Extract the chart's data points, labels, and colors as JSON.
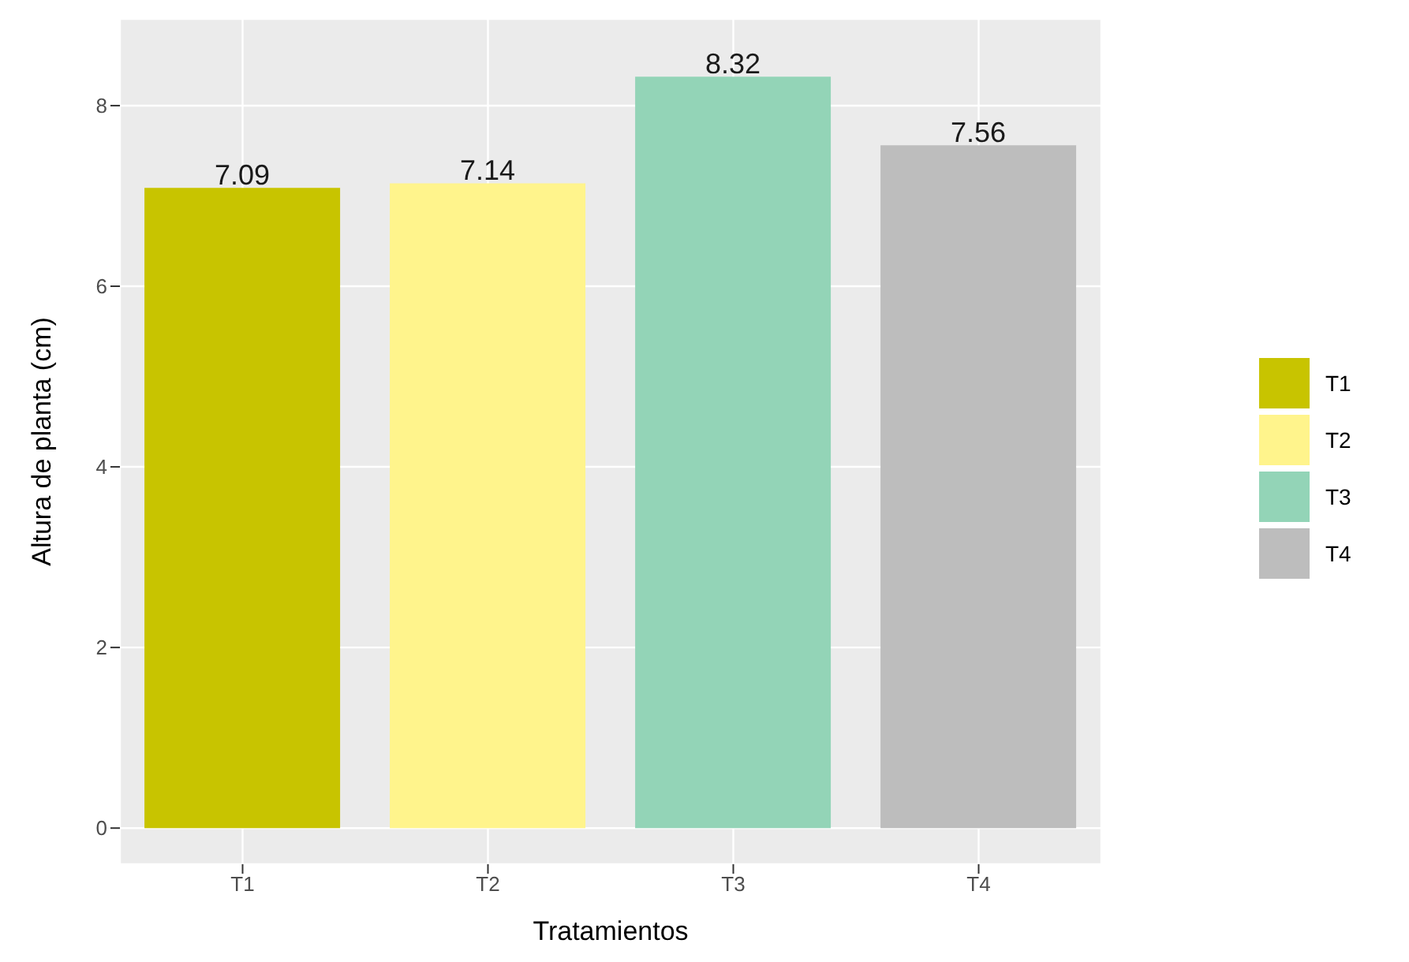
{
  "chart_data": {
    "type": "bar",
    "xlabel": "Tratamientos",
    "ylabel": "Altura de planta (cm)",
    "categories": [
      "T1",
      "T2",
      "T3",
      "T4"
    ],
    "series": [
      {
        "name": "T1",
        "color": "#c8c400",
        "values": [
          7.09,
          null,
          null,
          null
        ]
      },
      {
        "name": "T2",
        "color": "#fff48c",
        "values": [
          null,
          7.14,
          null,
          null
        ]
      },
      {
        "name": "T3",
        "color": "#93d4b7",
        "values": [
          null,
          null,
          8.32,
          null
        ]
      },
      {
        "name": "T4",
        "color": "#bdbdbd",
        "values": [
          null,
          null,
          null,
          7.56
        ]
      }
    ],
    "ylim": [
      -0.4,
      8.96
    ],
    "yticks": [
      0,
      2,
      4,
      6,
      8
    ],
    "grid": true,
    "legend": "right",
    "data_labels": true
  }
}
